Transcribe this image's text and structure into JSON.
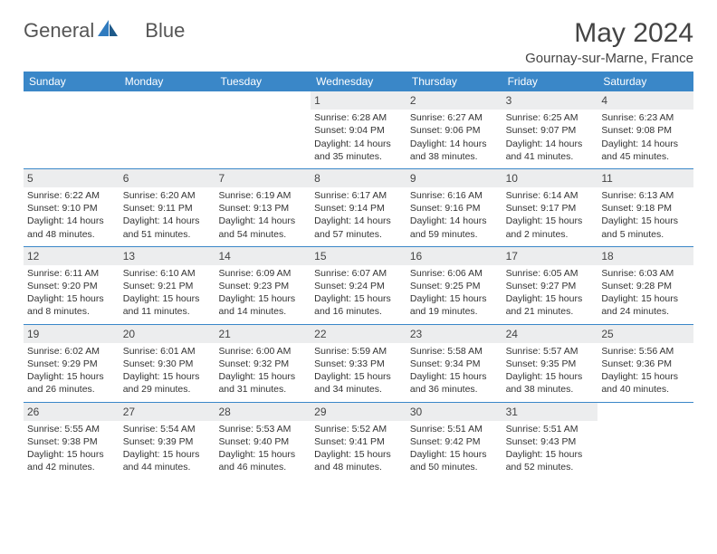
{
  "logo": {
    "text1": "General",
    "text2": "Blue"
  },
  "title": "May 2024",
  "location": "Gournay-sur-Marne, France",
  "colors": {
    "header_bg": "#3a87c8",
    "header_text": "#ffffff",
    "week_border": "#3a87c8",
    "daynum_bg": "#ecedee",
    "logo_blue": "#2f7bbf",
    "text": "#333333"
  },
  "day_names": [
    "Sunday",
    "Monday",
    "Tuesday",
    "Wednesday",
    "Thursday",
    "Friday",
    "Saturday"
  ],
  "weeks": [
    [
      null,
      null,
      null,
      {
        "n": "1",
        "sr": "6:28 AM",
        "ss": "9:04 PM",
        "dl": "14 hours and 35 minutes."
      },
      {
        "n": "2",
        "sr": "6:27 AM",
        "ss": "9:06 PM",
        "dl": "14 hours and 38 minutes."
      },
      {
        "n": "3",
        "sr": "6:25 AM",
        "ss": "9:07 PM",
        "dl": "14 hours and 41 minutes."
      },
      {
        "n": "4",
        "sr": "6:23 AM",
        "ss": "9:08 PM",
        "dl": "14 hours and 45 minutes."
      }
    ],
    [
      {
        "n": "5",
        "sr": "6:22 AM",
        "ss": "9:10 PM",
        "dl": "14 hours and 48 minutes."
      },
      {
        "n": "6",
        "sr": "6:20 AM",
        "ss": "9:11 PM",
        "dl": "14 hours and 51 minutes."
      },
      {
        "n": "7",
        "sr": "6:19 AM",
        "ss": "9:13 PM",
        "dl": "14 hours and 54 minutes."
      },
      {
        "n": "8",
        "sr": "6:17 AM",
        "ss": "9:14 PM",
        "dl": "14 hours and 57 minutes."
      },
      {
        "n": "9",
        "sr": "6:16 AM",
        "ss": "9:16 PM",
        "dl": "14 hours and 59 minutes."
      },
      {
        "n": "10",
        "sr": "6:14 AM",
        "ss": "9:17 PM",
        "dl": "15 hours and 2 minutes."
      },
      {
        "n": "11",
        "sr": "6:13 AM",
        "ss": "9:18 PM",
        "dl": "15 hours and 5 minutes."
      }
    ],
    [
      {
        "n": "12",
        "sr": "6:11 AM",
        "ss": "9:20 PM",
        "dl": "15 hours and 8 minutes."
      },
      {
        "n": "13",
        "sr": "6:10 AM",
        "ss": "9:21 PM",
        "dl": "15 hours and 11 minutes."
      },
      {
        "n": "14",
        "sr": "6:09 AM",
        "ss": "9:23 PM",
        "dl": "15 hours and 14 minutes."
      },
      {
        "n": "15",
        "sr": "6:07 AM",
        "ss": "9:24 PM",
        "dl": "15 hours and 16 minutes."
      },
      {
        "n": "16",
        "sr": "6:06 AM",
        "ss": "9:25 PM",
        "dl": "15 hours and 19 minutes."
      },
      {
        "n": "17",
        "sr": "6:05 AM",
        "ss": "9:27 PM",
        "dl": "15 hours and 21 minutes."
      },
      {
        "n": "18",
        "sr": "6:03 AM",
        "ss": "9:28 PM",
        "dl": "15 hours and 24 minutes."
      }
    ],
    [
      {
        "n": "19",
        "sr": "6:02 AM",
        "ss": "9:29 PM",
        "dl": "15 hours and 26 minutes."
      },
      {
        "n": "20",
        "sr": "6:01 AM",
        "ss": "9:30 PM",
        "dl": "15 hours and 29 minutes."
      },
      {
        "n": "21",
        "sr": "6:00 AM",
        "ss": "9:32 PM",
        "dl": "15 hours and 31 minutes."
      },
      {
        "n": "22",
        "sr": "5:59 AM",
        "ss": "9:33 PM",
        "dl": "15 hours and 34 minutes."
      },
      {
        "n": "23",
        "sr": "5:58 AM",
        "ss": "9:34 PM",
        "dl": "15 hours and 36 minutes."
      },
      {
        "n": "24",
        "sr": "5:57 AM",
        "ss": "9:35 PM",
        "dl": "15 hours and 38 minutes."
      },
      {
        "n": "25",
        "sr": "5:56 AM",
        "ss": "9:36 PM",
        "dl": "15 hours and 40 minutes."
      }
    ],
    [
      {
        "n": "26",
        "sr": "5:55 AM",
        "ss": "9:38 PM",
        "dl": "15 hours and 42 minutes."
      },
      {
        "n": "27",
        "sr": "5:54 AM",
        "ss": "9:39 PM",
        "dl": "15 hours and 44 minutes."
      },
      {
        "n": "28",
        "sr": "5:53 AM",
        "ss": "9:40 PM",
        "dl": "15 hours and 46 minutes."
      },
      {
        "n": "29",
        "sr": "5:52 AM",
        "ss": "9:41 PM",
        "dl": "15 hours and 48 minutes."
      },
      {
        "n": "30",
        "sr": "5:51 AM",
        "ss": "9:42 PM",
        "dl": "15 hours and 50 minutes."
      },
      {
        "n": "31",
        "sr": "5:51 AM",
        "ss": "9:43 PM",
        "dl": "15 hours and 52 minutes."
      },
      null
    ]
  ],
  "labels": {
    "sunrise": "Sunrise:",
    "sunset": "Sunset:",
    "daylight": "Daylight:"
  }
}
